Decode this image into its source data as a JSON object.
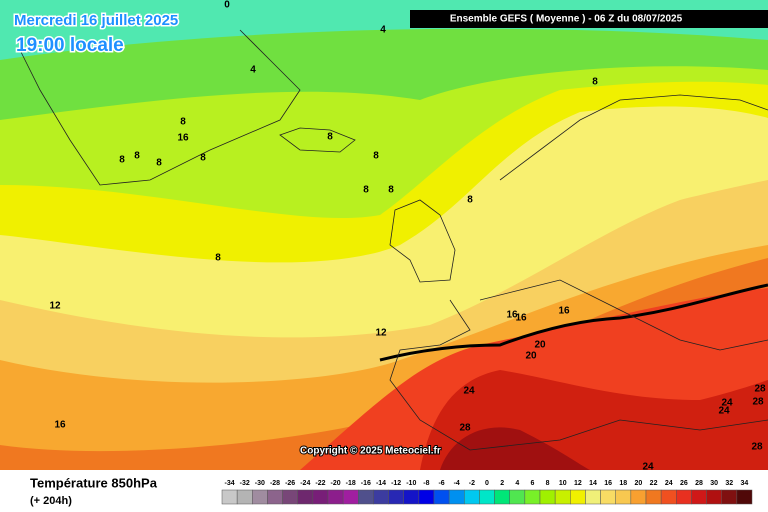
{
  "header": {
    "title": "Mercredi 16 juillet 2025",
    "subtitle": "19:00 locale",
    "run": "Ensemble GEFS  ( Moyenne )  -  06 Z du 08/07/2025"
  },
  "map": {
    "contour_labels": [
      "0",
      "4",
      "4",
      "8",
      "8",
      "16",
      "8",
      "8",
      "8",
      "8",
      "8",
      "8",
      "8",
      "8",
      "8",
      "8",
      "12",
      "12",
      "16",
      "16",
      "16",
      "20",
      "20",
      "24",
      "24",
      "24",
      "28",
      "28",
      "28",
      "28",
      "24",
      "16"
    ]
  },
  "copyright": "Copyright © 2025 Meteociel.fr",
  "footer": {
    "variable": "Température 850hPa",
    "lead": "(+ 204h)"
  },
  "legend": {
    "labels": [
      -34,
      -32,
      -30,
      -28,
      -26,
      -24,
      -22,
      -20,
      -18,
      -16,
      -14,
      -12,
      -10,
      -8,
      -6,
      -4,
      -2,
      0,
      2,
      4,
      6,
      8,
      10,
      12,
      14,
      16,
      18,
      20,
      22,
      24,
      26,
      28,
      30,
      32,
      34
    ],
    "colors": [
      "#c8c8c8",
      "#b4b4b4",
      "#a08ca0",
      "#8c648c",
      "#784678",
      "#6e286e",
      "#781e78",
      "#8c1e8c",
      "#a01ea0",
      "#50508c",
      "#3c3ca0",
      "#2828b4",
      "#1414c8",
      "#0000e6",
      "#0050f0",
      "#0090f0",
      "#00c8f0",
      "#00e6c8",
      "#00e678",
      "#50e650",
      "#78f028",
      "#a0f000",
      "#c8f000",
      "#f0f000",
      "#f0f078",
      "#f8dc64",
      "#f8c850",
      "#f8a030",
      "#f07820",
      "#f05020",
      "#e83020",
      "#d01818",
      "#b01010",
      "#801010",
      "#500808"
    ]
  }
}
